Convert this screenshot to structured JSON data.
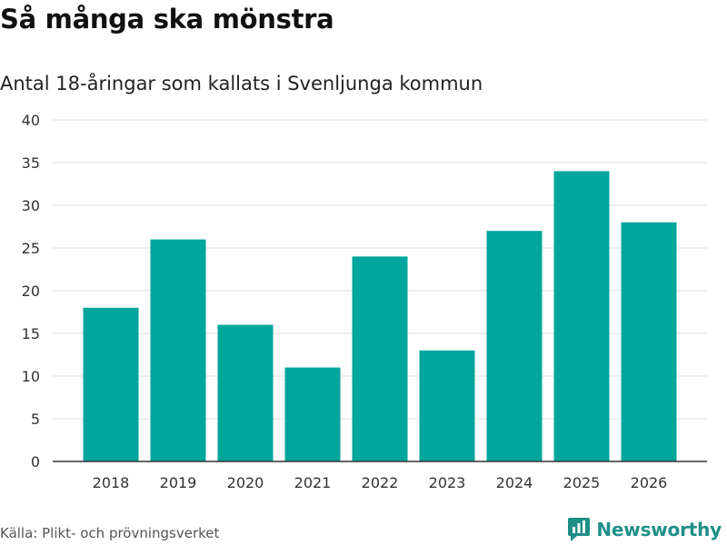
{
  "title": "Så många ska mönstra",
  "subtitle": "Antal 18-åringar som kallats i Svenljunga kommun",
  "source": "Källa: Plikt- och prövningsverket",
  "brand": {
    "name": "Newsworthy",
    "icon": "newsworthy-logo-icon"
  },
  "colors": {
    "bar": "#00a59b",
    "grid": "#dddddd",
    "axis": "#333333",
    "brand": "#1f8f88"
  },
  "chart_data": {
    "type": "bar",
    "title": "Så många ska mönstra",
    "subtitle": "Antal 18-åringar som kallats i Svenljunga kommun",
    "xlabel": "",
    "ylabel": "",
    "categories": [
      "2018",
      "2019",
      "2020",
      "2021",
      "2022",
      "2023",
      "2024",
      "2025",
      "2026"
    ],
    "values": [
      18,
      26,
      16,
      11,
      24,
      13,
      27,
      34,
      28
    ],
    "ylim": [
      0,
      40
    ],
    "yticks": [
      "0",
      "5",
      "10",
      "15",
      "20",
      "25",
      "30",
      "35",
      "40"
    ],
    "grid": true
  }
}
